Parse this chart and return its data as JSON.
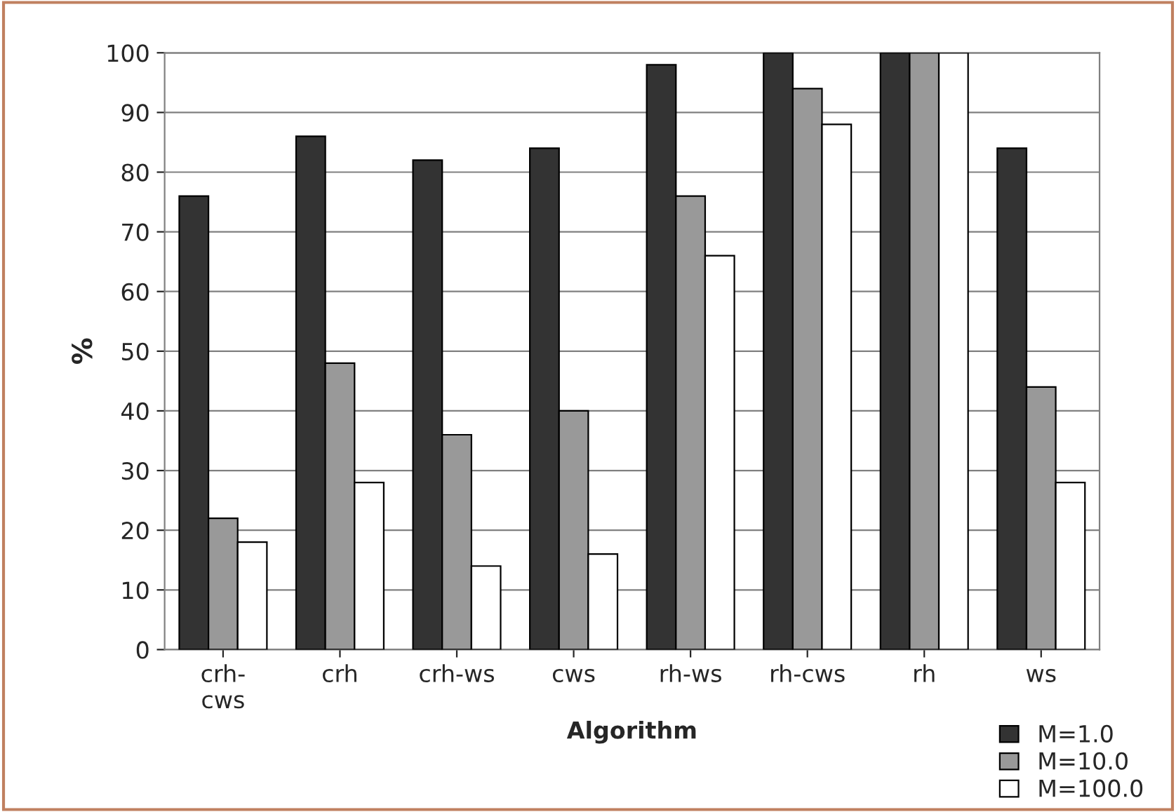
{
  "chart_data": {
    "type": "bar",
    "xlabel": "Algorithm",
    "ylabel": "%",
    "categories": [
      "crh-\ncws",
      "crh",
      "crh-ws",
      "cws",
      "rh-ws",
      "rh-cws",
      "rh",
      "ws"
    ],
    "series": [
      {
        "name": "M=1.0",
        "color": "#333333",
        "values": [
          76,
          86,
          82,
          84,
          98,
          100,
          100,
          84
        ]
      },
      {
        "name": "M=10.0",
        "color": "#999999",
        "values": [
          22,
          48,
          36,
          40,
          76,
          94,
          100,
          44
        ]
      },
      {
        "name": "M=100.0",
        "color": "#ffffff",
        "values": [
          18,
          28,
          14,
          16,
          66,
          88,
          100,
          28
        ]
      }
    ],
    "ylim": [
      0,
      100
    ],
    "yticks": [
      0,
      10,
      20,
      30,
      40,
      50,
      60,
      70,
      80,
      90,
      100
    ],
    "grid": "y",
    "legend": "bottom right"
  }
}
